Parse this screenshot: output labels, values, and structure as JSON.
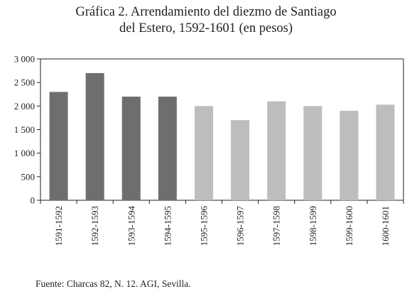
{
  "figure": {
    "title_line_1": "Gráfica 2. Arrendamiento del diezmo de Santiago",
    "title_line_2": "del Estero, 1592-1601 (en pesos)",
    "source": "Fuente: Charcas 82, N. 12. AGI, Sevilla."
  },
  "chart_data": {
    "type": "bar",
    "title": "Gráfica 2. Arrendamiento del diezmo de Santiago del Estero, 1592-1601 (en pesos)",
    "xlabel": "",
    "ylabel": "",
    "categories": [
      "1591-1592",
      "1592-1593",
      "1593-1594",
      "1594-1595",
      "1595-1596",
      "1596-1597",
      "1597-1598",
      "1598-1599",
      "1599-1600",
      "1600-1601"
    ],
    "values": [
      2300,
      2700,
      2200,
      2200,
      2000,
      1700,
      2100,
      2000,
      1900,
      2030
    ],
    "bar_colors": [
      "#6e6e6e",
      "#6e6e6e",
      "#6e6e6e",
      "#6e6e6e",
      "#bdbdbd",
      "#bdbdbd",
      "#bdbdbd",
      "#bdbdbd",
      "#bdbdbd",
      "#bdbdbd"
    ],
    "ylim": [
      0,
      3000
    ],
    "yticks": [
      0,
      500,
      1000,
      1500,
      2000,
      2500,
      3000
    ],
    "ytick_labels": [
      "0",
      "500",
      "1 000",
      "1 500",
      "2 000",
      "2 500",
      "3 000"
    ],
    "grid": false,
    "legend": "none"
  }
}
